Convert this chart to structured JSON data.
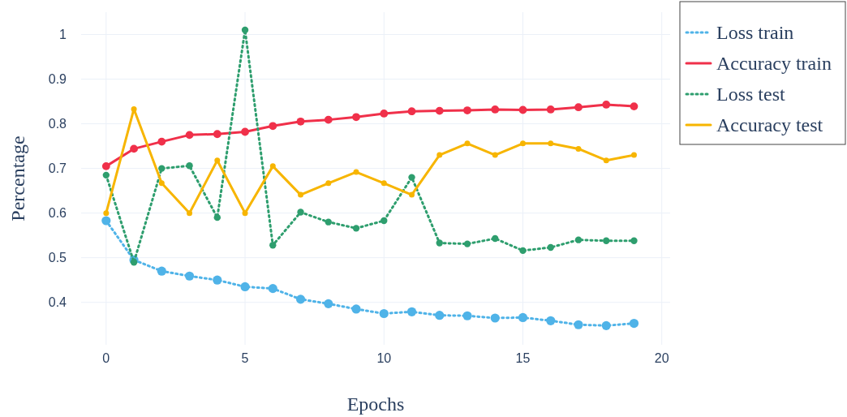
{
  "chart_data": {
    "type": "line",
    "xlabel": "Epochs",
    "ylabel": "Percentage",
    "x": [
      0,
      1,
      2,
      3,
      4,
      5,
      6,
      7,
      8,
      9,
      10,
      11,
      12,
      13,
      14,
      15,
      16,
      17,
      18,
      19
    ],
    "series": [
      {
        "name": "Loss train",
        "color": "#4fb3e8",
        "line_style": "dotted",
        "values": [
          0.583,
          0.495,
          0.47,
          0.459,
          0.45,
          0.435,
          0.431,
          0.407,
          0.397,
          0.385,
          0.375,
          0.379,
          0.371,
          0.37,
          0.365,
          0.366,
          0.359,
          0.35,
          0.348,
          0.353
        ]
      },
      {
        "name": "Accuracy train",
        "color": "#f0304a",
        "line_style": "solid",
        "values": [
          0.705,
          0.744,
          0.76,
          0.775,
          0.777,
          0.782,
          0.795,
          0.805,
          0.809,
          0.815,
          0.823,
          0.828,
          0.829,
          0.83,
          0.832,
          0.831,
          0.832,
          0.837,
          0.843,
          0.839
        ]
      },
      {
        "name": "Loss test",
        "color": "#2e9e6e",
        "line_style": "dotted",
        "values": [
          0.685,
          0.49,
          0.7,
          0.706,
          0.59,
          1.01,
          0.528,
          0.602,
          0.58,
          0.566,
          0.583,
          0.68,
          0.533,
          0.531,
          0.543,
          0.516,
          0.523,
          0.54,
          0.538,
          0.538
        ]
      },
      {
        "name": "Accuracy test",
        "color": "#f7b500",
        "line_style": "solid",
        "values": [
          0.6,
          0.833,
          0.667,
          0.6,
          0.718,
          0.6,
          0.705,
          0.641,
          0.667,
          0.692,
          0.667,
          0.641,
          0.73,
          0.756,
          0.73,
          0.756,
          0.756,
          0.744,
          0.718,
          0.73
        ]
      }
    ],
    "xlim": [
      -0.9,
      20.3
    ],
    "xticks": [
      0,
      5,
      10,
      15,
      20
    ],
    "ylim": [
      0.305,
      1.05
    ],
    "yticks": [
      0.4,
      0.5,
      0.6,
      0.7,
      0.8,
      0.9,
      1
    ],
    "grid": true,
    "legend": "top right",
    "marker": "circle"
  }
}
